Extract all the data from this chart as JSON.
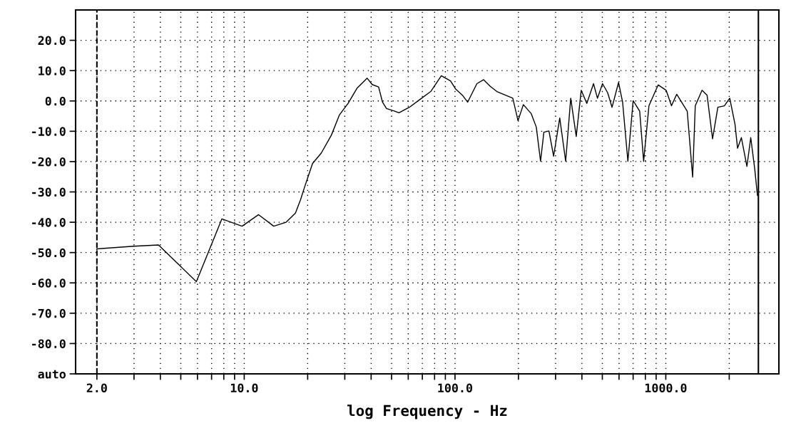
{
  "chart_data": {
    "type": "line",
    "xlabel": "log Frequency - Hz",
    "log": "x",
    "grid": true,
    "marker": "none",
    "line_style": "solid",
    "xlim": [
      1.585,
      3440
    ],
    "ylim": [
      -90,
      30
    ],
    "xticks": [
      {
        "value": 2,
        "label": "2.0"
      },
      {
        "value": 3,
        "label": null
      },
      {
        "value": 4,
        "label": null
      },
      {
        "value": 5,
        "label": null
      },
      {
        "value": 6,
        "label": null
      },
      {
        "value": 7,
        "label": null
      },
      {
        "value": 8,
        "label": null
      },
      {
        "value": 9,
        "label": null
      },
      {
        "value": 10,
        "label": "10.0"
      },
      {
        "value": 20,
        "label": null
      },
      {
        "value": 30,
        "label": null
      },
      {
        "value": 40,
        "label": null
      },
      {
        "value": 50,
        "label": null
      },
      {
        "value": 60,
        "label": null
      },
      {
        "value": 70,
        "label": null
      },
      {
        "value": 80,
        "label": null
      },
      {
        "value": 90,
        "label": null
      },
      {
        "value": 100,
        "label": "100.0"
      },
      {
        "value": 200,
        "label": null
      },
      {
        "value": 300,
        "label": null
      },
      {
        "value": 400,
        "label": null
      },
      {
        "value": 500,
        "label": null
      },
      {
        "value": 600,
        "label": null
      },
      {
        "value": 700,
        "label": null
      },
      {
        "value": 800,
        "label": null
      },
      {
        "value": 900,
        "label": null
      },
      {
        "value": 1000,
        "label": "1000.0"
      },
      {
        "value": 2000,
        "label": null
      }
    ],
    "yticks": [
      {
        "value": 20,
        "label": "20.0"
      },
      {
        "value": 10,
        "label": "10.0"
      },
      {
        "value": 0,
        "label": "0.0"
      },
      {
        "value": -10,
        "label": "-10.0"
      },
      {
        "value": -20,
        "label": "-20.0"
      },
      {
        "value": -30,
        "label": "-30.0"
      },
      {
        "value": -40,
        "label": "-40.0"
      },
      {
        "value": -50,
        "label": "-50.0"
      },
      {
        "value": -60,
        "label": "-60.0"
      },
      {
        "value": -70,
        "label": "-70.0"
      },
      {
        "value": -80,
        "label": "-80.0"
      },
      {
        "value": -90,
        "label": "auto"
      }
    ],
    "ref_lines": [
      {
        "axis": "x",
        "value": 2,
        "color": "#000000",
        "line_style": "dashed"
      },
      {
        "axis": "x",
        "value": 2750,
        "color": "#000000",
        "line_style": "solid"
      }
    ],
    "series": [
      {
        "color": "#000000",
        "x": [
          2.0,
          2.99,
          3.92,
          5.93,
          7.83,
          9.77,
          11.7,
          13.8,
          15.8,
          17.5,
          18.5,
          19.4,
          21.1,
          23.2,
          25.9,
          28.3,
          31.1,
          34.3,
          38.3,
          40.5,
          43.4,
          45.3,
          47.3,
          51.5,
          54.2,
          60.7,
          68.2,
          76.7,
          86.1,
          95.2,
          100.5,
          108.4,
          114.8,
          127,
          136.7,
          147,
          158,
          188,
          199,
          211,
          230,
          243,
          254.6,
          264,
          279,
          293.7,
          314,
          335,
          354,
          376,
          397,
          422,
          454,
          474,
          501,
          530,
          556,
          597,
          624,
          661,
          700,
          752,
          785,
          832,
          920,
          1004,
          1064,
          1127,
          1264,
          1341,
          1380,
          1486,
          1570,
          1667,
          1766,
          1897,
          2011,
          2131,
          2190,
          2284,
          2426,
          2530,
          2643,
          2722
        ],
        "values": [
          -48.8,
          -47.9,
          -47.5,
          -59.6,
          -38.9,
          -41.3,
          -37.5,
          -41.3,
          -40.0,
          -37.0,
          -32.6,
          -28.1,
          -20.6,
          -17.2,
          -11.3,
          -4.6,
          -0.8,
          4.2,
          7.5,
          5.4,
          4.6,
          -0.4,
          -2.5,
          -3.3,
          -3.9,
          -2.1,
          0.5,
          3.1,
          8.3,
          6.6,
          4.0,
          1.9,
          -0.4,
          5.7,
          7.0,
          4.8,
          3.1,
          0.9,
          -6.5,
          -1.2,
          -4.2,
          -8.6,
          -19.9,
          -10.3,
          -9.9,
          -18.2,
          -5.6,
          -19.9,
          0.9,
          -11.7,
          3.5,
          -0.8,
          5.7,
          0.9,
          5.7,
          2.7,
          -2.1,
          6.1,
          -0.4,
          -19.9,
          0.1,
          -3.4,
          -19.9,
          -1.6,
          5.3,
          3.5,
          -1.6,
          2.2,
          -3.4,
          -25.1,
          -1.6,
          3.5,
          1.9,
          -12.5,
          -2.1,
          -1.6,
          0.9,
          -7.8,
          -15.6,
          -12.1,
          -21.6,
          -12.1,
          -22.5,
          -31.2
        ]
      }
    ]
  }
}
